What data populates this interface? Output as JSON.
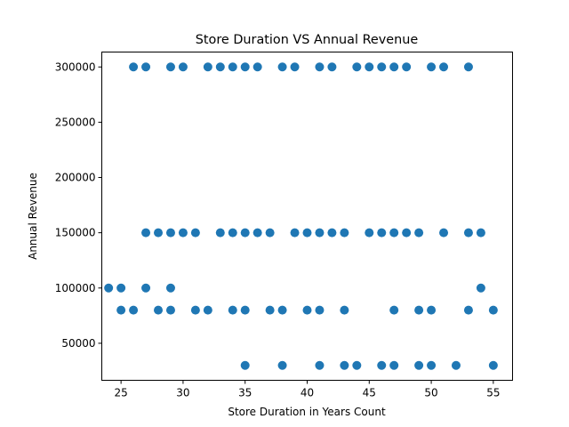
{
  "chart_data": {
    "type": "scatter",
    "title": "Store Duration VS Annual Revenue",
    "xlabel": "Store Duration in Years Count",
    "ylabel": "Annual Revenue",
    "xlim": [
      23.45,
      56.55
    ],
    "ylim": [
      16500,
      313500
    ],
    "xticks": [
      25,
      30,
      35,
      40,
      45,
      50,
      55
    ],
    "yticks": [
      50000,
      100000,
      150000,
      200000,
      250000,
      300000
    ],
    "grid": false,
    "marker_color": "#1f77b4",
    "points": [
      [
        26,
        300000
      ],
      [
        27,
        300000
      ],
      [
        29,
        300000
      ],
      [
        30,
        300000
      ],
      [
        32,
        300000
      ],
      [
        33,
        300000
      ],
      [
        34,
        300000
      ],
      [
        35,
        300000
      ],
      [
        36,
        300000
      ],
      [
        38,
        300000
      ],
      [
        39,
        300000
      ],
      [
        41,
        300000
      ],
      [
        42,
        300000
      ],
      [
        44,
        300000
      ],
      [
        45,
        300000
      ],
      [
        46,
        300000
      ],
      [
        47,
        300000
      ],
      [
        48,
        300000
      ],
      [
        50,
        300000
      ],
      [
        51,
        300000
      ],
      [
        53,
        300000
      ],
      [
        27,
        150000
      ],
      [
        28,
        150000
      ],
      [
        29,
        150000
      ],
      [
        30,
        150000
      ],
      [
        31,
        150000
      ],
      [
        33,
        150000
      ],
      [
        34,
        150000
      ],
      [
        35,
        150000
      ],
      [
        36,
        150000
      ],
      [
        37,
        150000
      ],
      [
        39,
        150000
      ],
      [
        40,
        150000
      ],
      [
        41,
        150000
      ],
      [
        42,
        150000
      ],
      [
        43,
        150000
      ],
      [
        45,
        150000
      ],
      [
        46,
        150000
      ],
      [
        47,
        150000
      ],
      [
        48,
        150000
      ],
      [
        49,
        150000
      ],
      [
        51,
        150000
      ],
      [
        53,
        150000
      ],
      [
        54,
        150000
      ],
      [
        24,
        100000
      ],
      [
        25,
        100000
      ],
      [
        27,
        100000
      ],
      [
        29,
        100000
      ],
      [
        54,
        100000
      ],
      [
        25,
        80000
      ],
      [
        26,
        80000
      ],
      [
        28,
        80000
      ],
      [
        29,
        80000
      ],
      [
        31,
        80000
      ],
      [
        32,
        80000
      ],
      [
        34,
        80000
      ],
      [
        35,
        80000
      ],
      [
        37,
        80000
      ],
      [
        38,
        80000
      ],
      [
        40,
        80000
      ],
      [
        41,
        80000
      ],
      [
        43,
        80000
      ],
      [
        47,
        80000
      ],
      [
        49,
        80000
      ],
      [
        50,
        80000
      ],
      [
        53,
        80000
      ],
      [
        55,
        80000
      ],
      [
        35,
        30000
      ],
      [
        38,
        30000
      ],
      [
        41,
        30000
      ],
      [
        43,
        30000
      ],
      [
        44,
        30000
      ],
      [
        46,
        30000
      ],
      [
        47,
        30000
      ],
      [
        49,
        30000
      ],
      [
        50,
        30000
      ],
      [
        52,
        30000
      ],
      [
        55,
        30000
      ]
    ]
  }
}
